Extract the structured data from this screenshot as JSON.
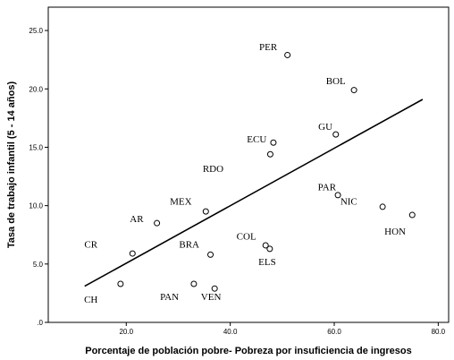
{
  "chart_data": {
    "type": "scatter",
    "xlabel": "Porcentaje de población pobre- Pobreza por insuficiencia de ingresos",
    "ylabel": "Tasa de trabajo infantil (5 - 14 años)",
    "xlim": [
      5,
      82
    ],
    "ylim": [
      0,
      27
    ],
    "xticks": [
      20,
      40,
      60,
      80
    ],
    "xtick_labels": [
      "20.0",
      "40.0",
      "60.0",
      "80.0"
    ],
    "yticks": [
      0,
      5,
      10,
      15,
      20,
      25
    ],
    "ytick_labels": [
      ".0",
      "5.0",
      "10.0",
      "15.0",
      "20.0",
      "25.0"
    ],
    "grid": false,
    "legend": "none",
    "points": [
      {
        "x": 51.0,
        "y": 22.9
      },
      {
        "x": 63.8,
        "y": 19.9
      },
      {
        "x": 60.3,
        "y": 16.1
      },
      {
        "x": 48.3,
        "y": 15.4
      },
      {
        "x": 47.7,
        "y": 14.4
      },
      {
        "x": 60.7,
        "y": 10.9
      },
      {
        "x": 69.3,
        "y": 9.9
      },
      {
        "x": 75.0,
        "y": 9.2
      },
      {
        "x": 35.3,
        "y": 9.5
      },
      {
        "x": 25.9,
        "y": 8.5
      },
      {
        "x": 46.8,
        "y": 6.6
      },
      {
        "x": 47.6,
        "y": 6.3
      },
      {
        "x": 21.2,
        "y": 5.9
      },
      {
        "x": 36.2,
        "y": 5.8
      },
      {
        "x": 18.9,
        "y": 3.3
      },
      {
        "x": 33.0,
        "y": 3.3
      },
      {
        "x": 37.0,
        "y": 2.9
      }
    ],
    "labels": [
      {
        "text": "PER",
        "x": 47.3,
        "y": 23.3
      },
      {
        "text": "BOL",
        "x": 60.3,
        "y": 20.4
      },
      {
        "text": "GU",
        "x": 58.3,
        "y": 16.5
      },
      {
        "text": "ECU",
        "x": 45.1,
        "y": 15.4
      },
      {
        "text": "RDO",
        "x": 36.7,
        "y": 12.9
      },
      {
        "text": "PAR",
        "x": 58.6,
        "y": 11.3
      },
      {
        "text": "NIC",
        "x": 62.8,
        "y": 10.1
      },
      {
        "text": "HON",
        "x": 71.7,
        "y": 7.5
      },
      {
        "text": "MEX",
        "x": 30.5,
        "y": 10.1
      },
      {
        "text": "AR",
        "x": 22.0,
        "y": 8.6
      },
      {
        "text": "COL",
        "x": 43.1,
        "y": 7.1
      },
      {
        "text": "BRA",
        "x": 32.1,
        "y": 6.4
      },
      {
        "text": "ELS",
        "x": 47.1,
        "y": 4.9
      },
      {
        "text": "CR",
        "x": 13.2,
        "y": 6.4
      },
      {
        "text": "CH",
        "x": 13.2,
        "y": 1.7
      },
      {
        "text": "PAN",
        "x": 28.3,
        "y": 1.9
      },
      {
        "text": "VEN",
        "x": 36.3,
        "y": 1.9
      }
    ],
    "fit_line": {
      "x": [
        12.0,
        77.0
      ],
      "y": [
        3.1,
        19.1
      ]
    }
  }
}
